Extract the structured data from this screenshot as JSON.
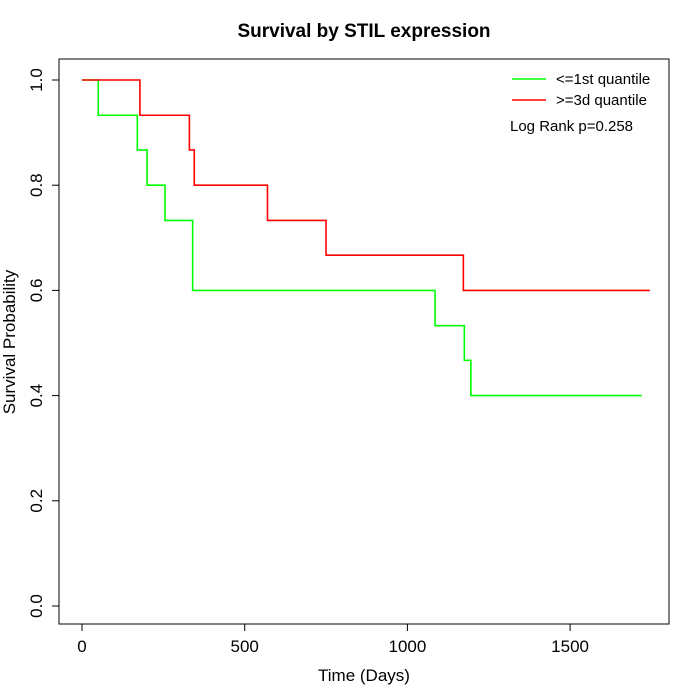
{
  "chart_data": {
    "type": "line",
    "step": true,
    "title": "Survival by STIL expression",
    "xlabel": "Time (Days)",
    "ylabel": "Survival Probability",
    "xlim": [
      0,
      1800
    ],
    "ylim": [
      0,
      1
    ],
    "xticks": [
      0,
      500,
      1000,
      1500
    ],
    "yticks": [
      0.0,
      0.2,
      0.4,
      0.6,
      0.8,
      1.0
    ],
    "ytick_labels": [
      "0.0",
      "0.2",
      "0.4",
      "0.6",
      "0.8",
      "1.0"
    ],
    "grid": false,
    "legend_position": "top-right",
    "annotation": "Log Rank p=0.258",
    "series": [
      {
        "name": "<=1st quantile",
        "color": "#00ff00",
        "x": [
          0,
          50,
          170,
          200,
          255,
          340,
          1085,
          1175,
          1195,
          1720
        ],
        "y": [
          1.0,
          0.933,
          0.867,
          0.8,
          0.733,
          0.6,
          0.533,
          0.467,
          0.4,
          0.4
        ]
      },
      {
        "name": ">=3d quantile",
        "color": "#ff0000",
        "x": [
          0,
          178,
          330,
          345,
          570,
          750,
          1172,
          1745
        ],
        "y": [
          1.0,
          0.933,
          0.867,
          0.8,
          0.733,
          0.667,
          0.6,
          0.6
        ]
      }
    ]
  }
}
